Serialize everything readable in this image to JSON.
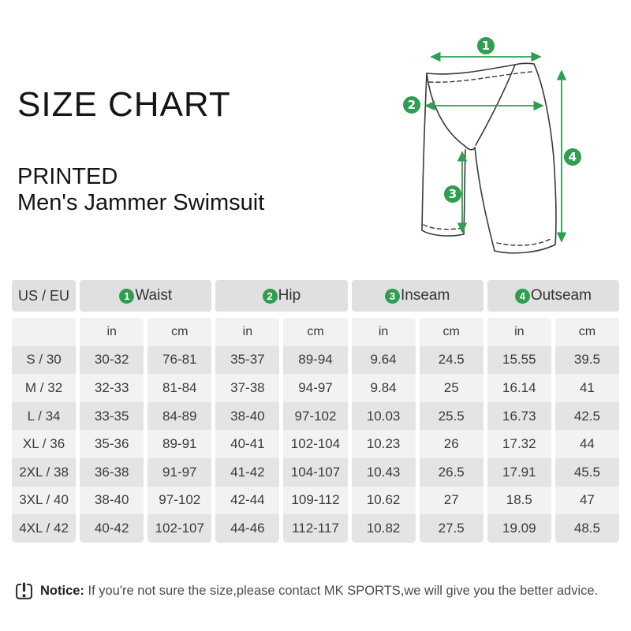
{
  "title": "SIZE CHART",
  "product": {
    "type": "PRINTED",
    "name": "Men's Jammer Swimsuit"
  },
  "colors": {
    "accent_green": "#2f9e50"
  },
  "diagram": {
    "markers": [
      "1",
      "2",
      "3",
      "4"
    ]
  },
  "chart_data": {
    "type": "table",
    "title": "Men's Jammer Swimsuit size chart",
    "columns": [
      "US / EU",
      "Waist in",
      "Waist cm",
      "Hip in",
      "Hip cm",
      "Inseam in",
      "Inseam cm",
      "Outseam in",
      "Outseam cm"
    ],
    "rows": [
      [
        "S / 30",
        "30-32",
        "76-81",
        "35-37",
        "89-94",
        "9.64",
        "24.5",
        "15.55",
        "39.5"
      ],
      [
        "M / 32",
        "32-33",
        "81-84",
        "37-38",
        "94-97",
        "9.84",
        "25",
        "16.14",
        "41"
      ],
      [
        "L / 34",
        "33-35",
        "84-89",
        "38-40",
        "97-102",
        "10.03",
        "25.5",
        "16.73",
        "42.5"
      ],
      [
        "XL / 36",
        "35-36",
        "89-91",
        "40-41",
        "102-104",
        "10.23",
        "26",
        "17.32",
        "44"
      ],
      [
        "2XL / 38",
        "36-38",
        "91-97",
        "41-42",
        "104-107",
        "10.43",
        "26.5",
        "17.91",
        "45.5"
      ],
      [
        "3XL / 40",
        "38-40",
        "97-102",
        "42-44",
        "109-112",
        "10.62",
        "27",
        "18.5",
        "47"
      ],
      [
        "4XL / 42",
        "40-42",
        "102-107",
        "44-46",
        "112-117",
        "10.82",
        "27.5",
        "19.09",
        "48.5"
      ]
    ]
  },
  "table": {
    "corner_header": "US / EU",
    "groups": [
      {
        "num": "1",
        "label": "Waist"
      },
      {
        "num": "2",
        "label": "Hip"
      },
      {
        "num": "3",
        "label": "Inseam"
      },
      {
        "num": "4",
        "label": "Outseam"
      }
    ],
    "unit_headers": [
      "in",
      "cm",
      "in",
      "cm",
      "in",
      "cm",
      "in",
      "cm"
    ],
    "rows": [
      {
        "size": "S / 30",
        "values": [
          "30-32",
          "76-81",
          "35-37",
          "89-94",
          "9.64",
          "24.5",
          "15.55",
          "39.5"
        ]
      },
      {
        "size": "M / 32",
        "values": [
          "32-33",
          "81-84",
          "37-38",
          "94-97",
          "9.84",
          "25",
          "16.14",
          "41"
        ]
      },
      {
        "size": "L / 34",
        "values": [
          "33-35",
          "84-89",
          "38-40",
          "97-102",
          "10.03",
          "25.5",
          "16.73",
          "42.5"
        ]
      },
      {
        "size": "XL / 36",
        "values": [
          "35-36",
          "89-91",
          "40-41",
          "102-104",
          "10.23",
          "26",
          "17.32",
          "44"
        ]
      },
      {
        "size": "2XL / 38",
        "values": [
          "36-38",
          "91-97",
          "41-42",
          "104-107",
          "10.43",
          "26.5",
          "17.91",
          "45.5"
        ]
      },
      {
        "size": "3XL / 40",
        "values": [
          "38-40",
          "97-102",
          "42-44",
          "109-112",
          "10.62",
          "27",
          "18.5",
          "47"
        ]
      },
      {
        "size": "4XL / 42",
        "values": [
          "40-42",
          "102-107",
          "44-46",
          "112-117",
          "10.82",
          "27.5",
          "19.09",
          "48.5"
        ]
      }
    ]
  },
  "notice": {
    "label": "Notice:",
    "text": " If you're not sure the size,please contact MK SPORTS,we will give you the better advice."
  }
}
